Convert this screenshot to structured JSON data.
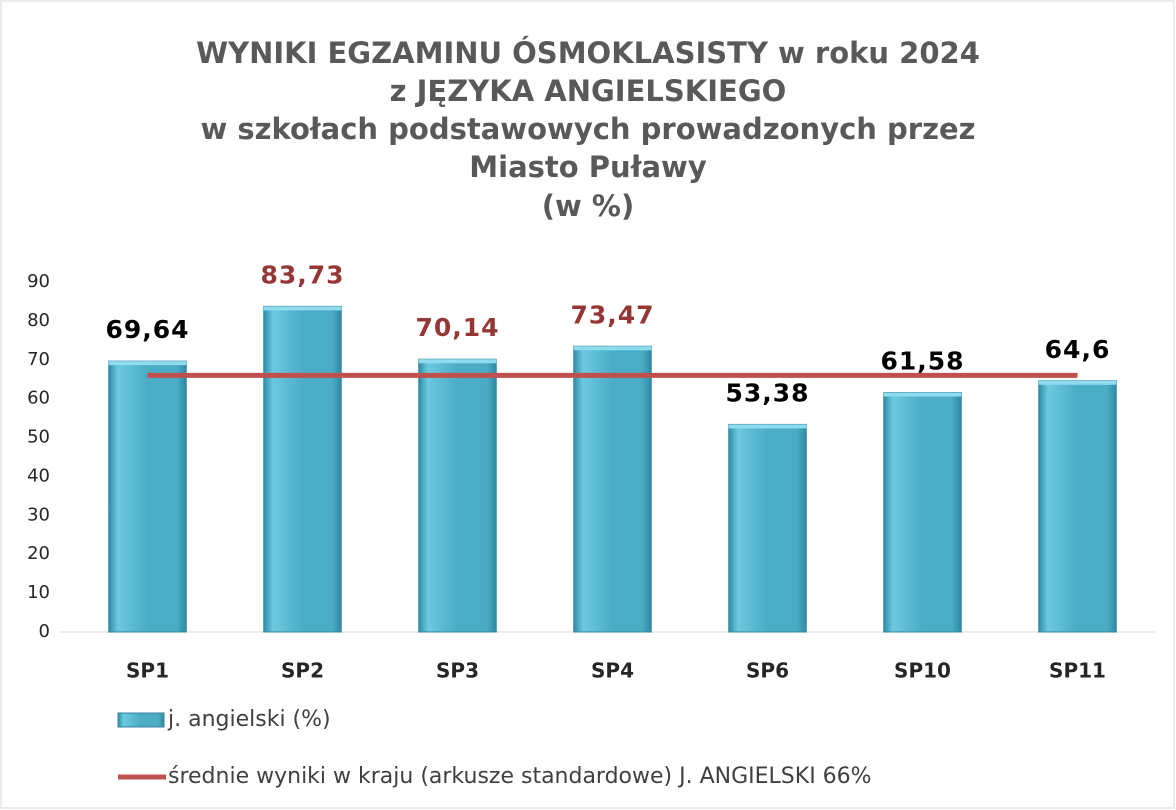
{
  "chart_data": {
    "type": "bar",
    "title": [
      "WYNIKI EGZAMINU ÓSMOKLASISTY w roku 2024",
      "z JĘZYKA ANGIELSKIEGO",
      "w szkołach podstawowych prowadzonych przez",
      "Miasto Puławy",
      "(w %)"
    ],
    "categories": [
      "SP1",
      "SP2",
      "SP3",
      "SP4",
      "SP6",
      "SP10",
      "SP11"
    ],
    "series": [
      {
        "name": "j. angielski (%)",
        "type": "bar",
        "color": "#4bacc6",
        "values": [
          69.64,
          83.73,
          70.14,
          73.47,
          53.38,
          61.58,
          64.6
        ],
        "value_labels": [
          "69,64",
          "83,73",
          "70,14",
          "73,47",
          "53,38",
          "61,58",
          "64,6"
        ],
        "value_label_colors": [
          "#000000",
          "#953735",
          "#953735",
          "#953735",
          "#000000",
          "#000000",
          "#000000"
        ]
      },
      {
        "name": "średnie wyniki w kraju (arkusze standardowe) J. ANGIELSKI 66%",
        "type": "line",
        "color": "#c0504d",
        "values": [
          66,
          66,
          66,
          66,
          66,
          66,
          66
        ]
      }
    ],
    "ylim": [
      0,
      90
    ],
    "yticks": [
      0,
      10,
      20,
      30,
      40,
      50,
      60,
      70,
      80,
      90
    ],
    "grid": false,
    "legend": "bottom"
  }
}
